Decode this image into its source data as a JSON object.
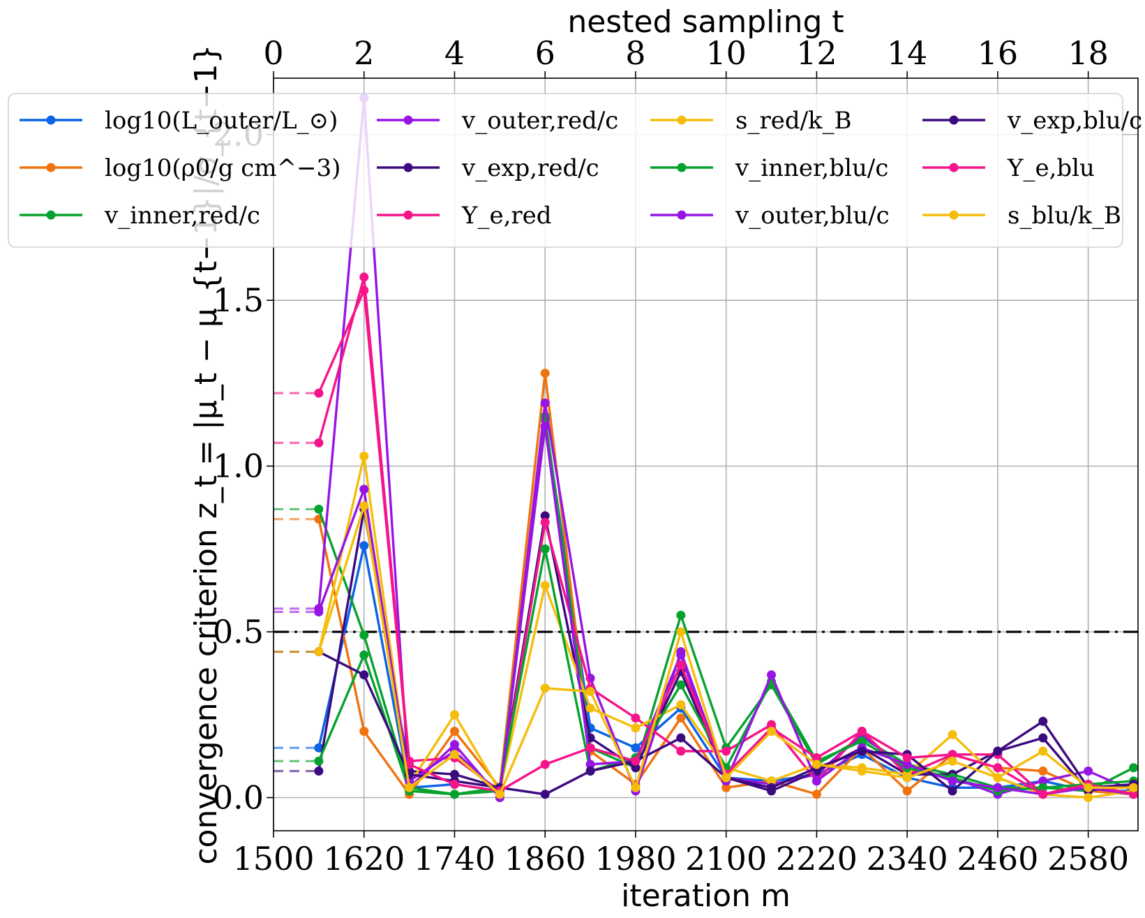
{
  "chart_data": {
    "type": "line",
    "xlabel_bottom": "iteration m",
    "xlabel_top": "nested sampling t",
    "ylabel": "convergence criterion z_t = |μ_t − μ_{t−1}|/σ_{t−1}",
    "x_bottom_ticks": [
      "1500",
      "1620",
      "1740",
      "1860",
      "1980",
      "2100",
      "2220",
      "2340",
      "2460",
      "2580"
    ],
    "x_top_ticks": [
      "0",
      "2",
      "4",
      "6",
      "8",
      "10",
      "12",
      "14",
      "16",
      "18"
    ],
    "y_ticks": [
      "0.0",
      "0.5",
      "1.0",
      "1.5",
      "2.0"
    ],
    "xlim": [
      0,
      19.1
    ],
    "ylim": [
      -0.1,
      2.17
    ],
    "threshold": 0.5,
    "grid": true,
    "legend_placement": "top",
    "series": [
      {
        "name": "log10(L_outer/L_⊙)",
        "color": "#0b63e5",
        "t0": 0.15,
        "values": [
          0.15,
          0.76,
          0.03,
          0.04,
          0.02,
          1.14,
          0.21,
          0.15,
          0.27,
          0.06,
          0.05,
          0.07,
          0.13,
          0.06,
          0.03,
          0.03,
          0.05,
          0.02,
          0.02
        ]
      },
      {
        "name": "log10(ρ0/g cm^−3)",
        "color": "#f0730e",
        "t0": 0.84,
        "values": [
          0.84,
          0.2,
          0.01,
          0.2,
          0.03,
          1.28,
          0.14,
          0.04,
          0.24,
          0.03,
          0.05,
          0.01,
          0.15,
          0.02,
          0.13,
          0.09,
          0.08,
          0.02,
          0.01
        ]
      },
      {
        "name": "v_inner,red/c",
        "color": "#06a22e",
        "t0": 0.87,
        "values": [
          0.87,
          0.49,
          0.03,
          0.01,
          0.02,
          1.15,
          0.15,
          0.09,
          0.55,
          0.15,
          0.34,
          0.1,
          0.18,
          0.1,
          0.07,
          0.03,
          0.03,
          0.02,
          0.09
        ]
      },
      {
        "name": "v_outer,red/c",
        "color": "#9715e3",
        "t0": 0.57,
        "values": [
          0.57,
          2.11,
          0.03,
          0.16,
          0.0,
          1.19,
          0.36,
          0.02,
          0.44,
          0.06,
          0.04,
          0.07,
          0.19,
          0.08,
          0.06,
          0.01,
          0.05,
          0.08,
          0.02
        ]
      },
      {
        "name": "v_exp,red/c",
        "color": "#3c0a7f",
        "t0": 0.08,
        "values": [
          0.08,
          0.87,
          0.08,
          0.07,
          0.03,
          0.85,
          0.18,
          0.09,
          0.38,
          0.06,
          0.02,
          0.08,
          0.15,
          0.07,
          0.07,
          0.14,
          0.18,
          0.02,
          0.04
        ]
      },
      {
        "name": "Y_e,red",
        "color": "#f5148a",
        "t0": 1.07,
        "values": [
          1.07,
          1.57,
          0.11,
          0.12,
          0.02,
          0.83,
          0.33,
          0.24,
          0.14,
          0.14,
          0.22,
          0.05,
          0.2,
          0.07,
          0.13,
          0.13,
          0.01,
          0.04,
          0.01
        ]
      },
      {
        "name": "s_red/k_B",
        "color": "#f5bd0b",
        "t0": 0.44,
        "values": [
          0.44,
          1.03,
          0.04,
          0.25,
          0.02,
          0.64,
          0.27,
          0.21,
          0.28,
          0.09,
          0.05,
          0.1,
          0.09,
          0.07,
          0.19,
          0.06,
          0.01,
          0.0,
          0.02
        ]
      },
      {
        "name": "v_inner,blu/c",
        "color": "#06a22e",
        "t0": 0.11,
        "values": [
          0.11,
          0.43,
          0.02,
          0.01,
          0.03,
          0.75,
          0.08,
          0.12,
          0.34,
          0.09,
          0.35,
          0.11,
          0.17,
          0.09,
          0.06,
          0.02,
          0.03,
          0.04,
          0.05
        ]
      },
      {
        "name": "v_outer,blu/c",
        "color": "#9715e3",
        "t0": 0.56,
        "values": [
          0.56,
          0.93,
          0.05,
          0.14,
          0.01,
          1.12,
          0.1,
          0.11,
          0.43,
          0.05,
          0.37,
          0.05,
          0.15,
          0.1,
          0.05,
          0.03,
          0.01,
          0.03,
          0.01
        ]
      },
      {
        "name": "v_exp,blu/c",
        "color": "#3c0a7f",
        "t0": 0.44,
        "values": [
          0.44,
          0.37,
          0.07,
          0.05,
          0.03,
          0.01,
          0.08,
          0.11,
          0.18,
          0.06,
          0.03,
          0.09,
          0.14,
          0.13,
          0.02,
          0.14,
          0.23,
          0.03,
          0.04
        ]
      },
      {
        "name": "Y_e,blu",
        "color": "#f5148a",
        "t0": 1.22,
        "values": [
          1.22,
          1.53,
          0.1,
          0.04,
          0.02,
          0.1,
          0.15,
          0.11,
          0.4,
          0.07,
          0.21,
          0.12,
          0.2,
          0.12,
          0.13,
          0.09,
          0.01,
          0.04,
          0.01
        ]
      },
      {
        "name": "s_blu/k_B",
        "color": "#f5bd0b",
        "t0": 0.44,
        "values": [
          0.44,
          0.88,
          0.03,
          0.13,
          0.01,
          0.33,
          0.32,
          0.03,
          0.5,
          0.06,
          0.2,
          0.1,
          0.08,
          0.06,
          0.11,
          0.06,
          0.14,
          0.03,
          0.03
        ]
      }
    ]
  }
}
